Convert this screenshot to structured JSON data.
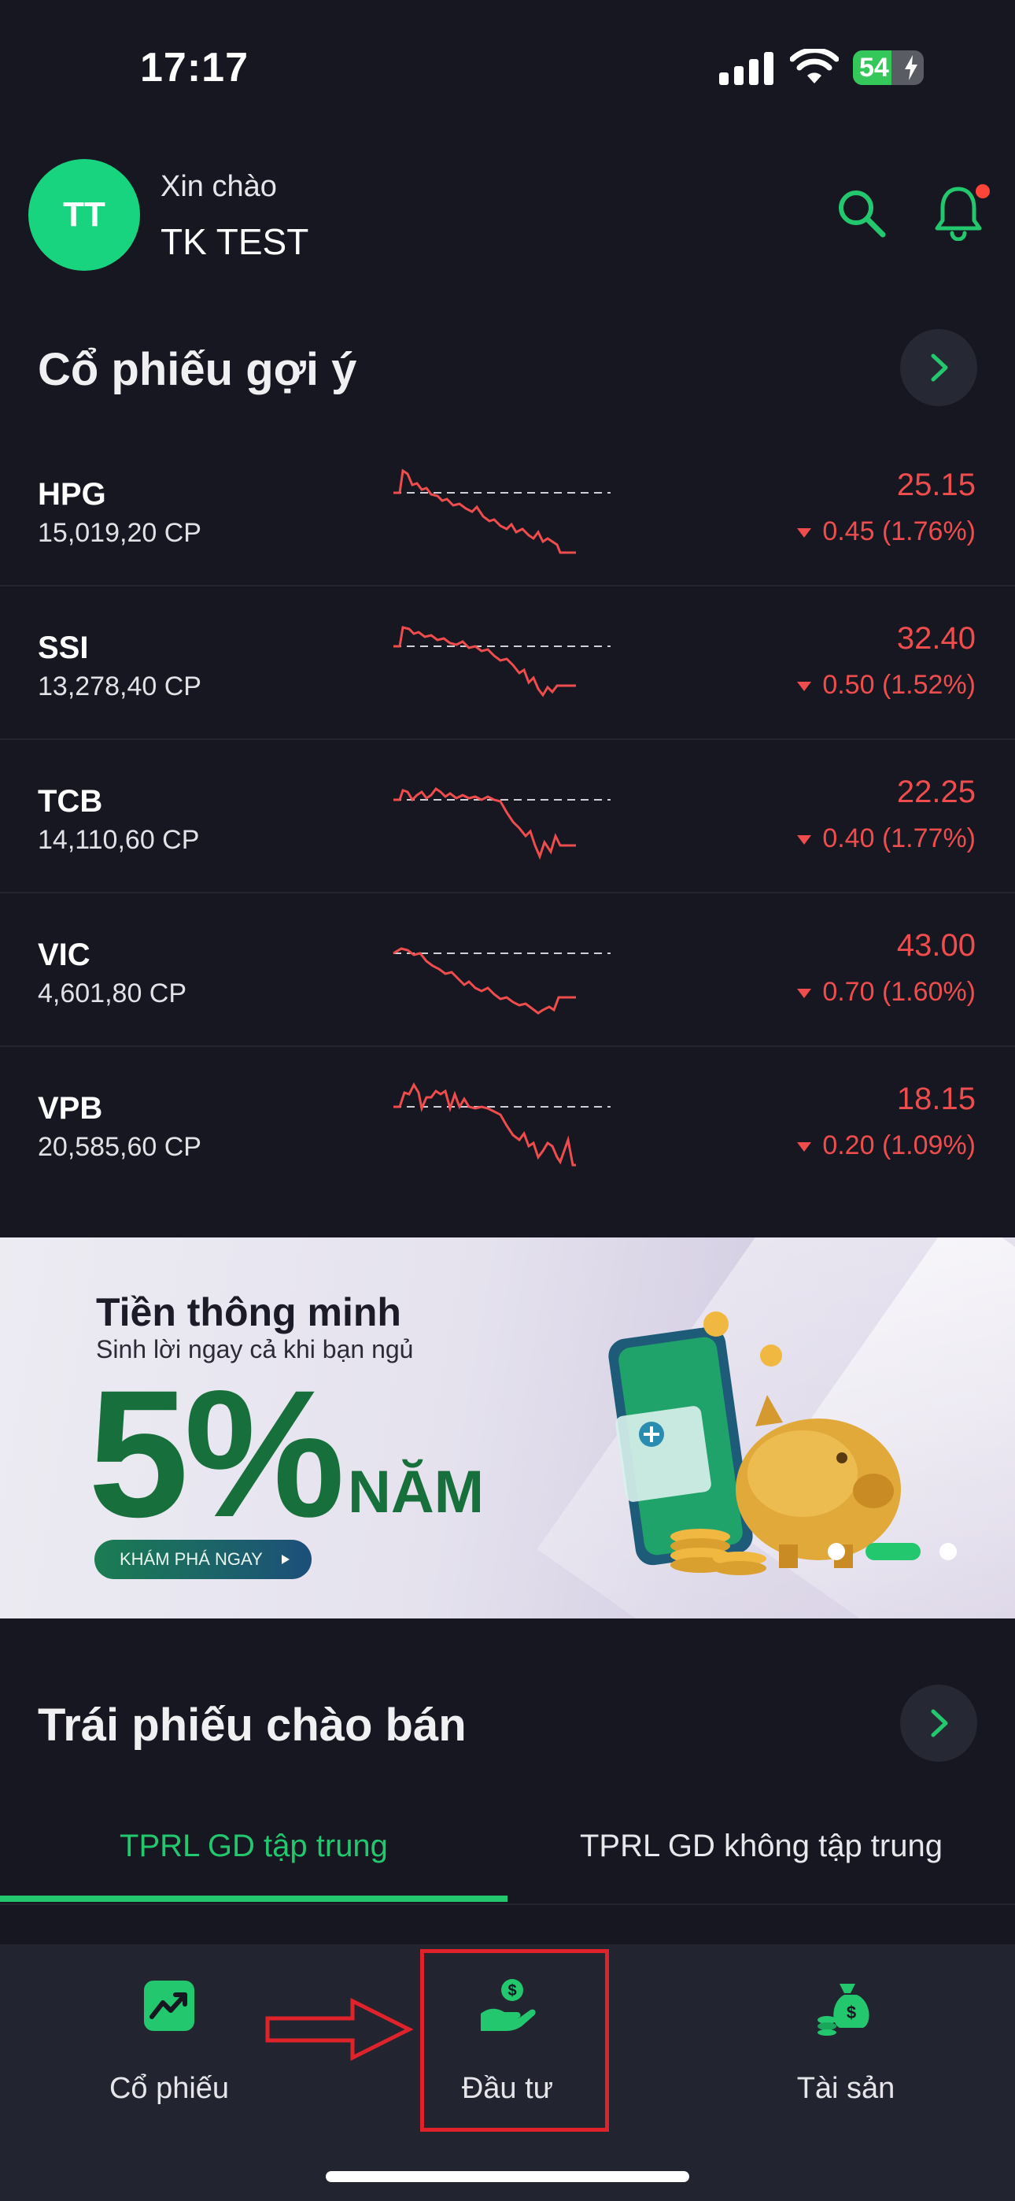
{
  "status_bar": {
    "time": "17:17",
    "battery": "54",
    "battery_level": 0.54
  },
  "header": {
    "avatar_initials": "TT",
    "greeting": "Xin chào",
    "username": "TK TEST"
  },
  "suggested": {
    "title": "Cổ phiếu gợi ý",
    "stocks": [
      {
        "symbol": "HPG",
        "volume": "15,019,20 CP",
        "price": "25.15",
        "change": "0.45 (1.76%)"
      },
      {
        "symbol": "SSI",
        "volume": "13,278,40 CP",
        "price": "32.40",
        "change": "0.50 (1.52%)"
      },
      {
        "symbol": "TCB",
        "volume": "14,110,60 CP",
        "price": "22.25",
        "change": "0.40 (1.77%)"
      },
      {
        "symbol": "VIC",
        "volume": "4,601,80 CP",
        "price": "43.00",
        "change": "0.70 (1.60%)"
      },
      {
        "symbol": "VPB",
        "volume": "20,585,60 CP",
        "price": "18.15",
        "change": "0.20 (1.09%)"
      }
    ]
  },
  "banner": {
    "title": "Tiền thông minh",
    "subtitle": "Sinh lời ngay cả khi bạn ngủ",
    "rate": "5%",
    "unit": "NĂM",
    "cta": "KHÁM PHÁ NGAY",
    "active_slide": 2
  },
  "bonds": {
    "title": "Trái phiếu chào bán",
    "tabs": [
      "TPRL GD tập trung",
      "TPRL GD không tập trung"
    ]
  },
  "bottom_nav": {
    "items": [
      {
        "label": "Cổ phiếu",
        "icon": "stock-chart-icon"
      },
      {
        "label": "Đầu tư",
        "icon": "invest-hand-coin-icon"
      },
      {
        "label": "Tài sản",
        "icon": "money-bag-icon"
      }
    ]
  },
  "colors": {
    "accent": "#22c76e",
    "down": "#ef4d4d",
    "background": "#161720",
    "nav_background": "#22242f"
  }
}
